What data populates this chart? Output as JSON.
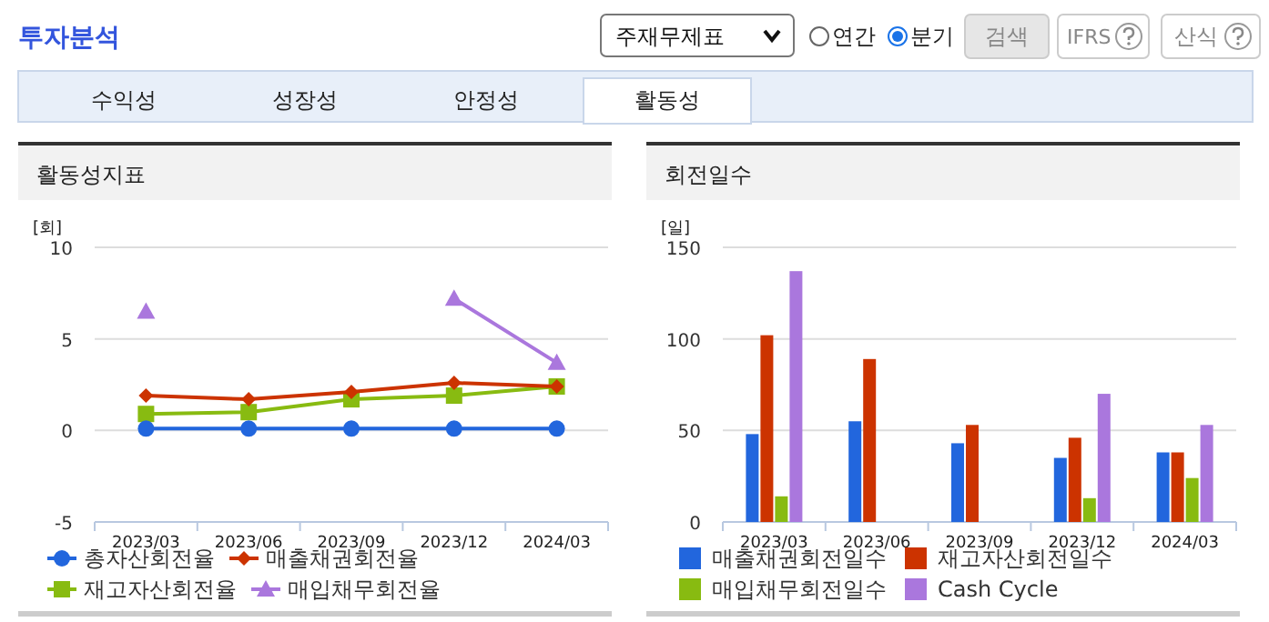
{
  "chart_data": [
    {
      "type": "other",
      "title": "투자분석",
      "annotations": [
        "주재무제표",
        "연간",
        "분기",
        "검색",
        "IFRS",
        "산식",
        "수익성",
        "성장성",
        "안정성",
        "활동성"
      ]
    },
    {
      "type": "line",
      "title": "활동성지표",
      "ylabel": "[회]",
      "categories": [
        "2023/03",
        "2023/06",
        "2023/09",
        "2023/12",
        "2024/03"
      ],
      "ylim": [
        -5,
        10
      ],
      "yticks": [
        -5,
        0,
        5,
        10
      ],
      "grid": "y",
      "legend": "bottom",
      "line_style": "solid",
      "series": [
        {
          "name": "총자산회전율",
          "color": "#2266dd",
          "marker": "circle",
          "values": [
            0.1,
            0.1,
            0.1,
            0.1,
            0.1
          ]
        },
        {
          "name": "매출채권회전율",
          "color": "#cc3300",
          "marker": "diamond",
          "values": [
            1.9,
            1.7,
            2.1,
            2.6,
            2.4
          ]
        },
        {
          "name": "재고자산회전율",
          "color": "#88bb11",
          "marker": "square",
          "values": [
            0.9,
            1.0,
            1.7,
            1.9,
            2.4
          ]
        },
        {
          "name": "매입채무회전율",
          "color": "#aa77dd",
          "marker": "triangle",
          "values": [
            6.5,
            null,
            null,
            7.2,
            3.7
          ]
        }
      ]
    },
    {
      "type": "bar",
      "title": "회전일수",
      "ylabel": "[일]",
      "categories": [
        "2023/03",
        "2023/06",
        "2023/09",
        "2023/12",
        "2024/03"
      ],
      "ylim": [
        0,
        150
      ],
      "yticks": [
        0,
        50,
        100,
        150
      ],
      "grid": "y",
      "legend": "bottom",
      "series": [
        {
          "name": "매출채권회전일수",
          "color": "#2266dd",
          "values": [
            48,
            55,
            43,
            35,
            38
          ]
        },
        {
          "name": "재고자산회전일수",
          "color": "#cc3300",
          "values": [
            102,
            89,
            53,
            46,
            38
          ]
        },
        {
          "name": "매입채무회전일수",
          "color": "#88bb11",
          "values": [
            14,
            null,
            null,
            13,
            24
          ]
        },
        {
          "name": "Cash Cycle",
          "color": "#aa77dd",
          "values": [
            137,
            null,
            null,
            70,
            53
          ]
        }
      ]
    }
  ]
}
